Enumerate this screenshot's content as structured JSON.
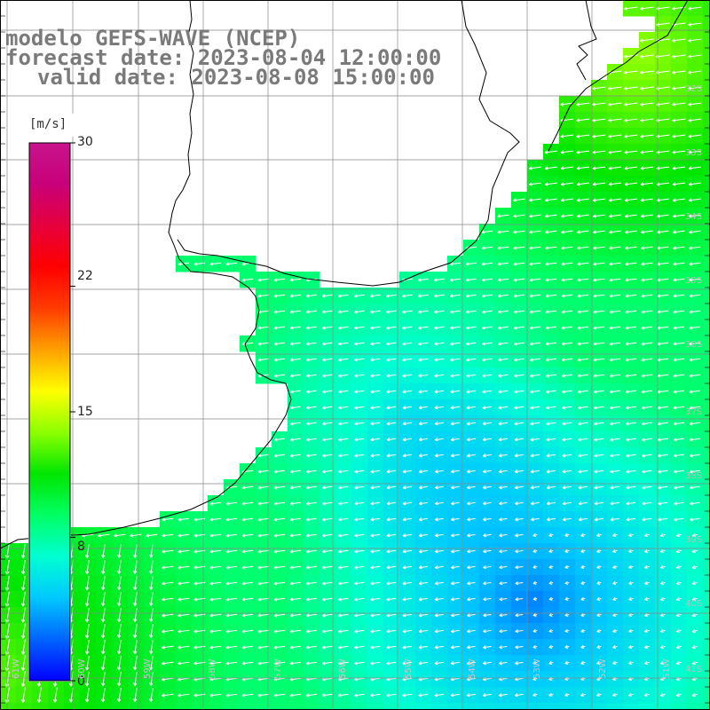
{
  "title": {
    "line1": "modelo GEFS-WAVE (NCEP)",
    "line2": "forecast date: 2023-08-04 12:00:00",
    "line3": "valid date: 2023-08-08 15:00:00"
  },
  "colorbar": {
    "unit": "[m/s]",
    "ticks": [
      {
        "label": "30",
        "value": 30
      },
      {
        "label": "22",
        "value": 22
      },
      {
        "label": "15",
        "value": 15
      },
      {
        "label": "8",
        "value": 8
      },
      {
        "label": "0",
        "value": 0
      }
    ],
    "min": 0,
    "max": 30,
    "colors": [
      "#0000ff",
      "#0064ff",
      "#00c8ff",
      "#00ffd2",
      "#00ff64",
      "#00e600",
      "#8cff00",
      "#ffff00",
      "#ffa000",
      "#ff3c00",
      "#ff0000",
      "#e6003c",
      "#c80078",
      "#c8148c"
    ]
  },
  "lat_labels": [
    "32S",
    "33S",
    "34S",
    "35S",
    "36S",
    "37S",
    "38S",
    "39S",
    "40S",
    "41S"
  ],
  "lon_labels": [
    "61W",
    "60W",
    "59W",
    "58W",
    "57W",
    "56W",
    "55W",
    "54W",
    "53W",
    "52W",
    "51W"
  ],
  "colors": {
    "land": "#ffffff",
    "grid": "#888888",
    "coast": "#000000",
    "arrow": "#ffffff",
    "title": "#7a7a7a"
  }
}
